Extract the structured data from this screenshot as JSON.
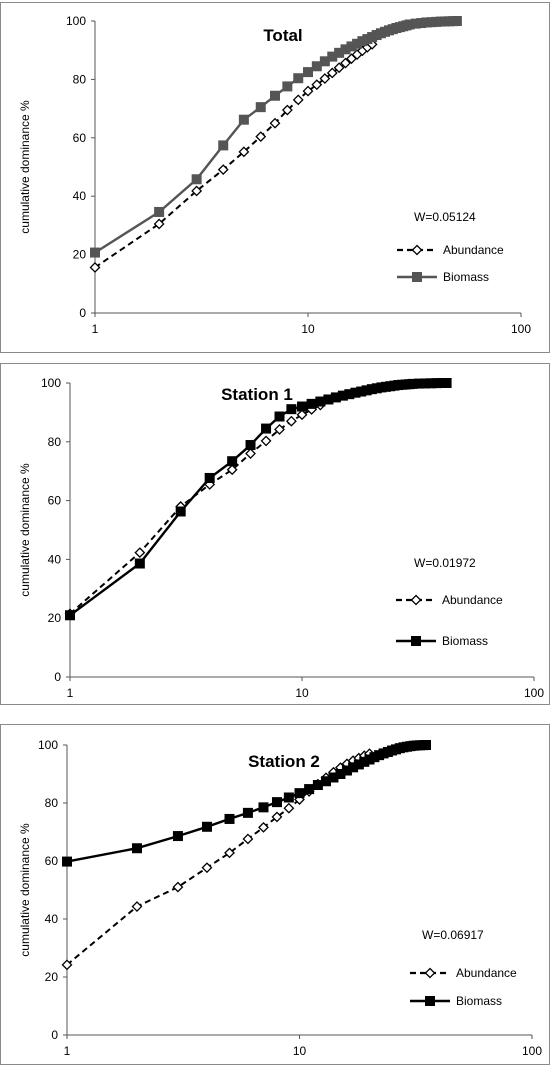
{
  "chart_data": [
    {
      "type": "line",
      "title": "Total",
      "ylabel": "cumulative dominance %",
      "xscale": "log",
      "xlim": [
        1,
        100
      ],
      "ylim": [
        0,
        100
      ],
      "xticks": [
        "1",
        "10",
        "100"
      ],
      "yticks": [
        "0",
        "20",
        "40",
        "60",
        "80",
        "100"
      ],
      "annotation": "W=0.05124",
      "legend_position": "right",
      "series": [
        {
          "name": "Abundance",
          "style": "dashed",
          "marker": "open-diamond",
          "color": "#000000",
          "x": [
            1,
            2,
            3,
            4,
            5,
            6,
            7,
            8,
            9,
            10,
            11,
            12,
            13,
            14,
            15,
            16,
            17,
            18,
            19,
            20
          ],
          "y": [
            15.6,
            30.5,
            41.8,
            49.1,
            55.2,
            60.4,
            65.0,
            69.5,
            73.0,
            76.0,
            78.2,
            80.3,
            82.2,
            84.0,
            85.6,
            87.1,
            88.5,
            89.8,
            91.0,
            92.0
          ]
        },
        {
          "name": "Biomass",
          "style": "solid",
          "marker": "filled-square",
          "color": "#555555",
          "x": [
            1,
            2,
            3,
            4,
            5,
            6,
            7,
            8,
            9,
            10,
            11,
            12,
            13,
            14,
            15,
            16,
            17,
            18,
            19,
            20,
            21,
            22,
            23,
            24,
            25,
            26,
            27,
            28,
            29,
            30,
            32,
            34,
            36,
            38,
            40,
            42,
            44,
            46,
            48,
            50
          ],
          "y": [
            20.7,
            34.6,
            45.8,
            57.4,
            66.2,
            70.5,
            74.4,
            77.6,
            80.4,
            82.5,
            84.5,
            86.2,
            87.8,
            89.1,
            90.3,
            91.3,
            92.2,
            93.1,
            93.8,
            94.5,
            95.2,
            95.8,
            96.3,
            96.8,
            97.2,
            97.6,
            97.9,
            98.2,
            98.5,
            98.8,
            99.1,
            99.3,
            99.5,
            99.6,
            99.7,
            99.8,
            99.85,
            99.9,
            99.95,
            100
          ]
        }
      ]
    },
    {
      "type": "line",
      "title": "Station 1",
      "ylabel": "cumulative dominance %",
      "xscale": "log",
      "xlim": [
        1,
        100
      ],
      "ylim": [
        0,
        100
      ],
      "xticks": [
        "1",
        "10",
        "100"
      ],
      "yticks": [
        "0",
        "20",
        "40",
        "60",
        "80",
        "100"
      ],
      "annotation": "W=0.01972",
      "legend_position": "right",
      "series": [
        {
          "name": "Abundance",
          "style": "dashed",
          "marker": "open-diamond",
          "color": "#000000",
          "x": [
            1,
            2,
            3,
            4,
            5,
            6,
            7,
            8,
            9,
            10,
            11,
            12
          ],
          "y": [
            21.5,
            42.3,
            58.0,
            65.5,
            70.5,
            76.0,
            80.3,
            84.2,
            87.0,
            89.2,
            91.0,
            92.5
          ]
        },
        {
          "name": "Biomass",
          "style": "solid",
          "marker": "filled-square",
          "color": "#000000",
          "x": [
            1,
            2,
            3,
            4,
            5,
            6,
            7,
            8,
            9,
            10,
            11,
            12,
            13,
            14,
            15,
            16,
            17,
            18,
            19,
            20,
            21,
            22,
            23,
            24,
            25,
            26,
            27,
            28,
            29,
            30,
            32,
            34,
            36,
            38,
            40,
            42
          ],
          "y": [
            21.0,
            38.6,
            56.3,
            67.7,
            73.4,
            78.9,
            84.5,
            88.6,
            91.1,
            92.0,
            92.9,
            93.7,
            94.4,
            95.1,
            95.7,
            96.2,
            96.7,
            97.1,
            97.5,
            97.9,
            98.2,
            98.5,
            98.7,
            98.9,
            99.1,
            99.3,
            99.4,
            99.5,
            99.6,
            99.7,
            99.8,
            99.85,
            99.9,
            99.95,
            100,
            100
          ]
        }
      ]
    },
    {
      "type": "line",
      "title": "Station 2",
      "ylabel": "cumulative dominance %",
      "xscale": "log",
      "xlim": [
        1,
        100
      ],
      "ylim": [
        0,
        100
      ],
      "xticks": [
        "1",
        "10",
        "100"
      ],
      "yticks": [
        "0",
        "20",
        "40",
        "60",
        "80",
        "100"
      ],
      "annotation": "W=0.06917",
      "legend_position": "right",
      "series": [
        {
          "name": "Abundance",
          "style": "dashed",
          "marker": "open-diamond",
          "color": "#000000",
          "x": [
            1,
            2,
            3,
            4,
            5,
            6,
            7,
            8,
            9,
            10,
            11,
            12,
            13,
            14,
            15,
            16,
            17,
            18,
            19,
            20
          ],
          "y": [
            24.2,
            44.3,
            51.0,
            57.7,
            62.8,
            67.6,
            71.6,
            75.2,
            78.2,
            81.2,
            84.0,
            86.5,
            88.7,
            90.6,
            92.2,
            93.5,
            94.6,
            95.5,
            96.3,
            97.0
          ]
        },
        {
          "name": "Biomass",
          "style": "solid",
          "marker": "filled-square",
          "color": "#000000",
          "x": [
            1,
            2,
            3,
            4,
            5,
            6,
            7,
            8,
            9,
            10,
            11,
            12,
            13,
            14,
            15,
            16,
            17,
            18,
            19,
            20,
            21,
            22,
            23,
            24,
            25,
            26,
            27,
            28,
            29,
            30,
            31,
            32,
            33,
            34,
            35
          ],
          "y": [
            59.8,
            64.4,
            68.6,
            71.8,
            74.5,
            76.6,
            78.5,
            80.3,
            81.9,
            83.4,
            84.8,
            86.2,
            87.5,
            88.8,
            90.0,
            91.2,
            92.3,
            93.3,
            94.2,
            95.0,
            95.8,
            96.5,
            97.1,
            97.6,
            98.1,
            98.5,
            98.9,
            99.2,
            99.4,
            99.6,
            99.75,
            99.85,
            99.9,
            99.95,
            100
          ]
        }
      ]
    }
  ]
}
